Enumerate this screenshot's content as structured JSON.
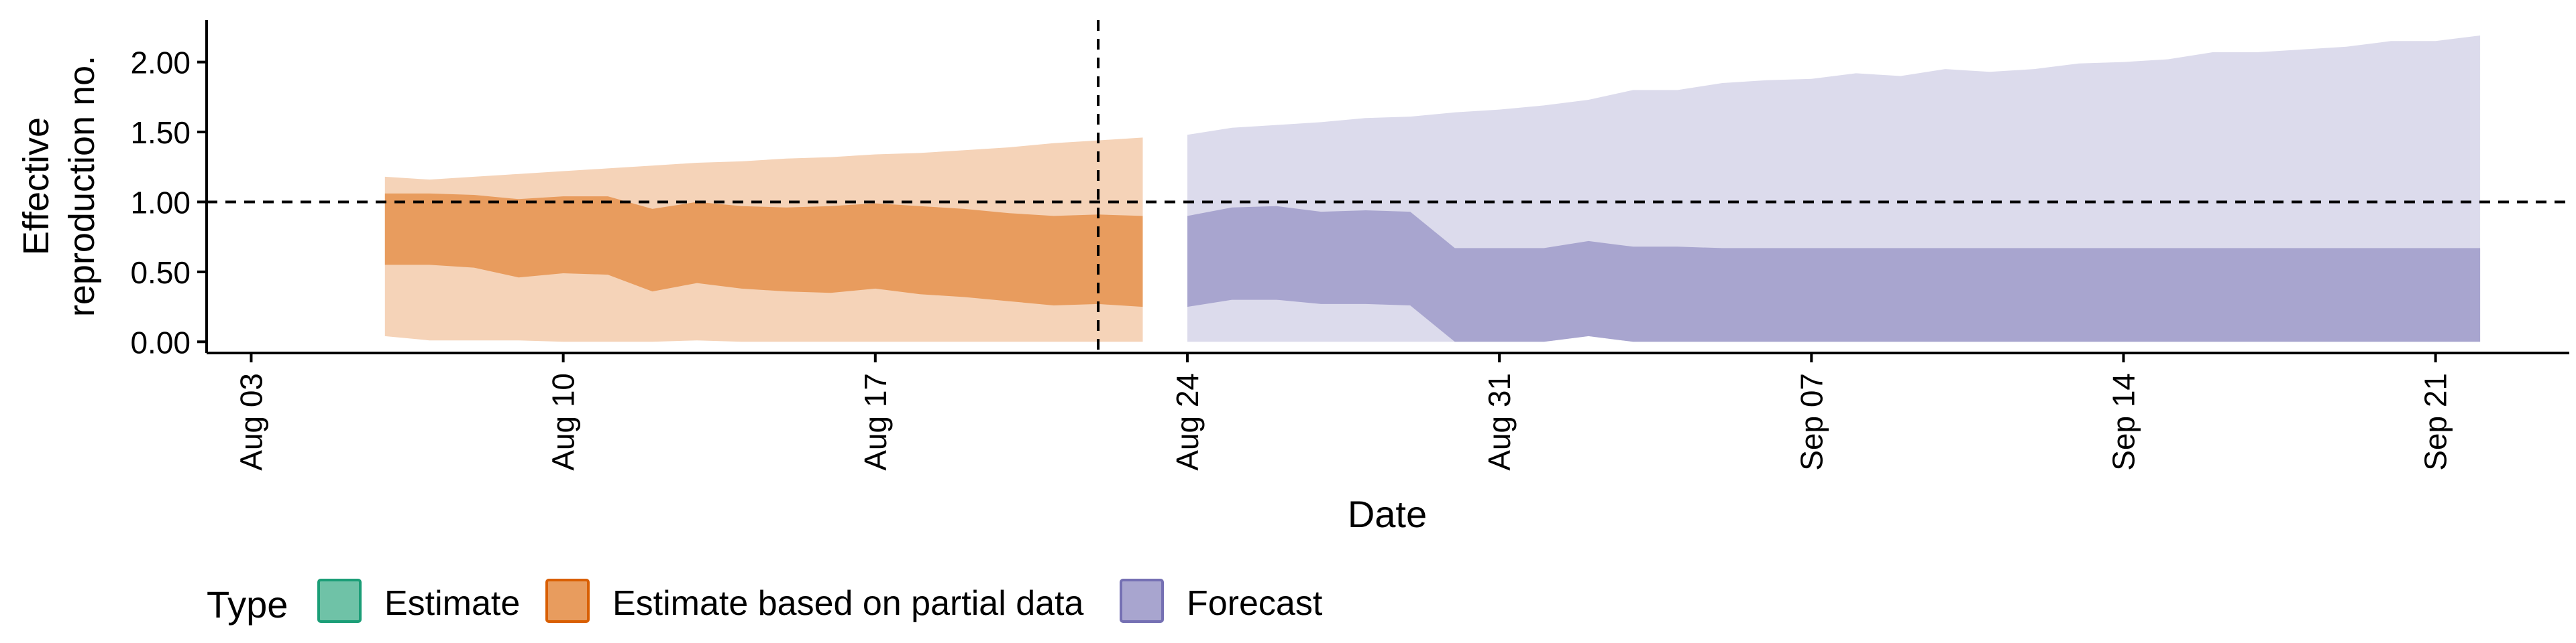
{
  "chart_data": {
    "type": "area",
    "title": "",
    "xlabel": "Date",
    "ylabel_lines": [
      "Effective",
      "reproduction no."
    ],
    "x_range": [
      "2021-08-02",
      "2021-09-24"
    ],
    "ylim": [
      -0.08,
      2.3
    ],
    "x_ticks": [
      {
        "date": "2021-08-03",
        "label": "Aug 03"
      },
      {
        "date": "2021-08-10",
        "label": "Aug 10"
      },
      {
        "date": "2021-08-17",
        "label": "Aug 17"
      },
      {
        "date": "2021-08-24",
        "label": "Aug 24"
      },
      {
        "date": "2021-08-31",
        "label": "Aug 31"
      },
      {
        "date": "2021-09-07",
        "label": "Sep 07"
      },
      {
        "date": "2021-09-14",
        "label": "Sep 14"
      },
      {
        "date": "2021-09-21",
        "label": "Sep 21"
      }
    ],
    "y_ticks": [
      {
        "value": 0,
        "label": "0.00"
      },
      {
        "value": 0.5,
        "label": "0.50"
      },
      {
        "value": 1,
        "label": "1.00"
      },
      {
        "value": 1.5,
        "label": "1.50"
      },
      {
        "value": 2,
        "label": "2.00"
      }
    ],
    "reference_lines": {
      "y": 1.0,
      "x": "2021-08-22"
    },
    "grid": false,
    "legend": {
      "position": "bottom-left",
      "title": "Type",
      "entries": [
        {
          "label": "Estimate",
          "fill": "#6fc2a7",
          "stroke": "#1b9e77"
        },
        {
          "label": "Estimate based on partial data",
          "fill": "#e89c5e",
          "stroke": "#d95f02"
        },
        {
          "label": "Forecast",
          "fill": "#a8a5cf",
          "stroke": "#7570b3"
        }
      ]
    },
    "series": [
      {
        "name": "Estimate based on partial data",
        "dates": [
          "2021-08-06",
          "2021-08-07",
          "2021-08-08",
          "2021-08-09",
          "2021-08-10",
          "2021-08-11",
          "2021-08-12",
          "2021-08-13",
          "2021-08-14",
          "2021-08-15",
          "2021-08-16",
          "2021-08-17",
          "2021-08-18",
          "2021-08-19",
          "2021-08-20",
          "2021-08-21",
          "2021-08-22",
          "2021-08-23"
        ],
        "outer_lower": [
          0.04,
          0.01,
          0.01,
          0.01,
          0.0,
          0.0,
          0.0,
          0.01,
          0.0,
          0.0,
          0.0,
          0.0,
          0.0,
          0.0,
          0.0,
          0.0,
          0.0,
          0.0
        ],
        "outer_upper": [
          1.18,
          1.16,
          1.18,
          1.2,
          1.22,
          1.24,
          1.26,
          1.28,
          1.29,
          1.31,
          1.32,
          1.34,
          1.35,
          1.37,
          1.39,
          1.42,
          1.44,
          1.46
        ],
        "inner_lower": [
          0.55,
          0.55,
          0.53,
          0.46,
          0.49,
          0.48,
          0.36,
          0.42,
          0.38,
          0.36,
          0.35,
          0.38,
          0.34,
          0.32,
          0.29,
          0.26,
          0.27,
          0.25
        ],
        "inner_upper": [
          1.06,
          1.06,
          1.05,
          1.02,
          1.04,
          1.04,
          0.95,
          1.0,
          0.97,
          0.96,
          0.97,
          0.99,
          0.97,
          0.95,
          0.92,
          0.9,
          0.91,
          0.9
        ],
        "outer_fill": "#f5d3b8",
        "inner_fill": "#e89c5e"
      },
      {
        "name": "Forecast",
        "dates": [
          "2021-08-24",
          "2021-08-25",
          "2021-08-26",
          "2021-08-27",
          "2021-08-28",
          "2021-08-29",
          "2021-08-30",
          "2021-08-31",
          "2021-09-01",
          "2021-09-02",
          "2021-09-03",
          "2021-09-04",
          "2021-09-05",
          "2021-09-06",
          "2021-09-07",
          "2021-09-08",
          "2021-09-09",
          "2021-09-10",
          "2021-09-11",
          "2021-09-12",
          "2021-09-13",
          "2021-09-14",
          "2021-09-15",
          "2021-09-16",
          "2021-09-17",
          "2021-09-18",
          "2021-09-19",
          "2021-09-20",
          "2021-09-21",
          "2021-09-22"
        ],
        "outer_lower": [
          0,
          0,
          0,
          0,
          0,
          0,
          0,
          0,
          0,
          0.04,
          0,
          0,
          0,
          0,
          0,
          0,
          0,
          0,
          0,
          0,
          0,
          0,
          0,
          0,
          0,
          0,
          0,
          0,
          0,
          0
        ],
        "outer_upper": [
          1.48,
          1.53,
          1.55,
          1.57,
          1.6,
          1.61,
          1.64,
          1.66,
          1.69,
          1.73,
          1.8,
          1.8,
          1.85,
          1.87,
          1.88,
          1.92,
          1.9,
          1.95,
          1.93,
          1.95,
          1.99,
          2.0,
          2.02,
          2.07,
          2.07,
          2.09,
          2.11,
          2.15,
          2.15,
          2.19
        ],
        "inner_lower": [
          0.25,
          0.3,
          0.3,
          0.27,
          0.27,
          0.26,
          0.0,
          0.0,
          0.0,
          0.04,
          0.0,
          0.0,
          0.0,
          0.0,
          0.0,
          0.0,
          0.0,
          0.0,
          0.0,
          0.0,
          0.0,
          0.0,
          0.0,
          0.0,
          0.0,
          0.0,
          0.0,
          0.0,
          0.0,
          0.0
        ],
        "inner_upper": [
          0.9,
          0.96,
          0.97,
          0.93,
          0.94,
          0.93,
          0.67,
          0.67,
          0.67,
          0.72,
          0.68,
          0.68,
          0.67,
          0.67,
          0.67,
          0.67,
          0.67,
          0.67,
          0.67,
          0.67,
          0.67,
          0.67,
          0.67,
          0.67,
          0.67,
          0.67,
          0.67,
          0.67,
          0.67,
          0.67
        ],
        "outer_fill": "#dcdbec",
        "inner_fill": "#a8a5cf"
      }
    ]
  }
}
